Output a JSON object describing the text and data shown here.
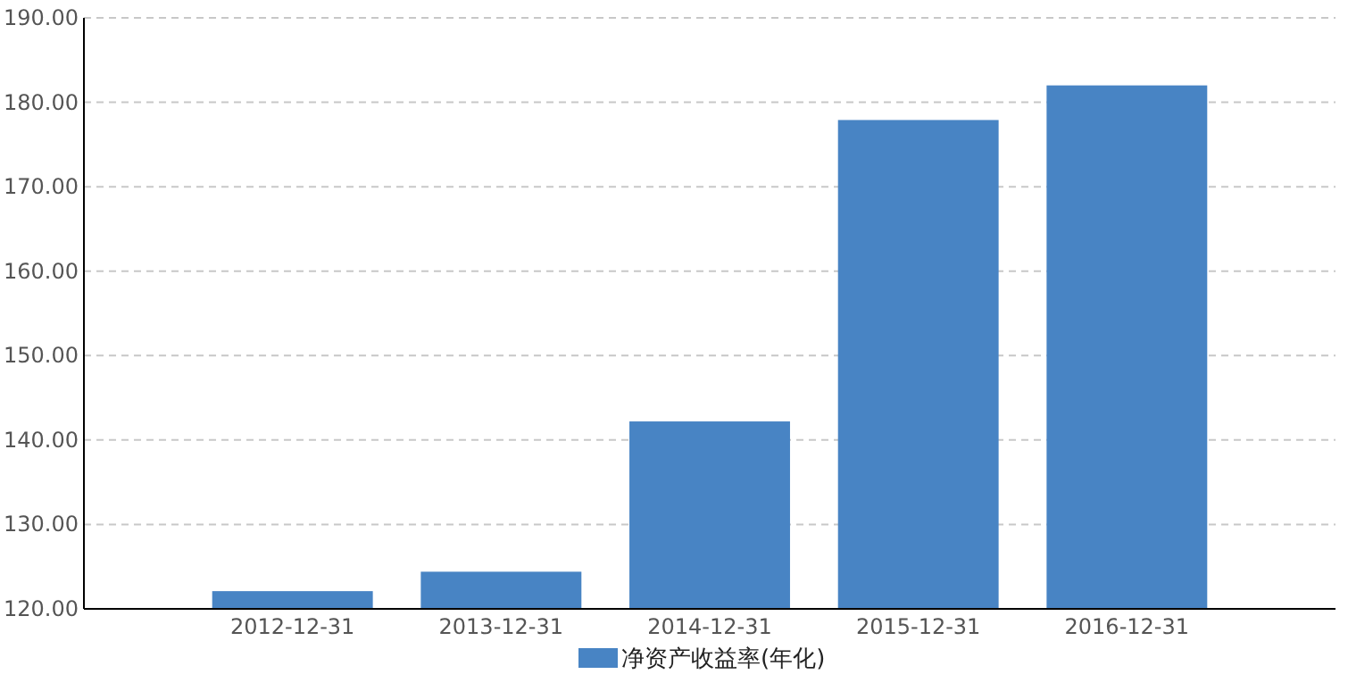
{
  "chart_data": {
    "type": "bar",
    "categories": [
      "2012-12-31",
      "2013-12-31",
      "2014-12-31",
      "2015-12-31",
      "2016-12-31"
    ],
    "series": [
      {
        "name": "净资产收益率(年化)",
        "color": "#4884c4",
        "values": [
          122.1,
          124.4,
          142.2,
          177.9,
          182.0
        ]
      }
    ],
    "ylim": [
      120,
      190
    ],
    "yticks": [
      {
        "value": 120,
        "label": "120.00"
      },
      {
        "value": 130,
        "label": "130.00"
      },
      {
        "value": 140,
        "label": "140.00"
      },
      {
        "value": 150,
        "label": "150.00"
      },
      {
        "value": 160,
        "label": "160.00"
      },
      {
        "value": 170,
        "label": "170.00"
      },
      {
        "value": 180,
        "label": "180.00"
      },
      {
        "value": 190,
        "label": "190.00"
      }
    ],
    "grid": "y",
    "legend": "bottom"
  }
}
